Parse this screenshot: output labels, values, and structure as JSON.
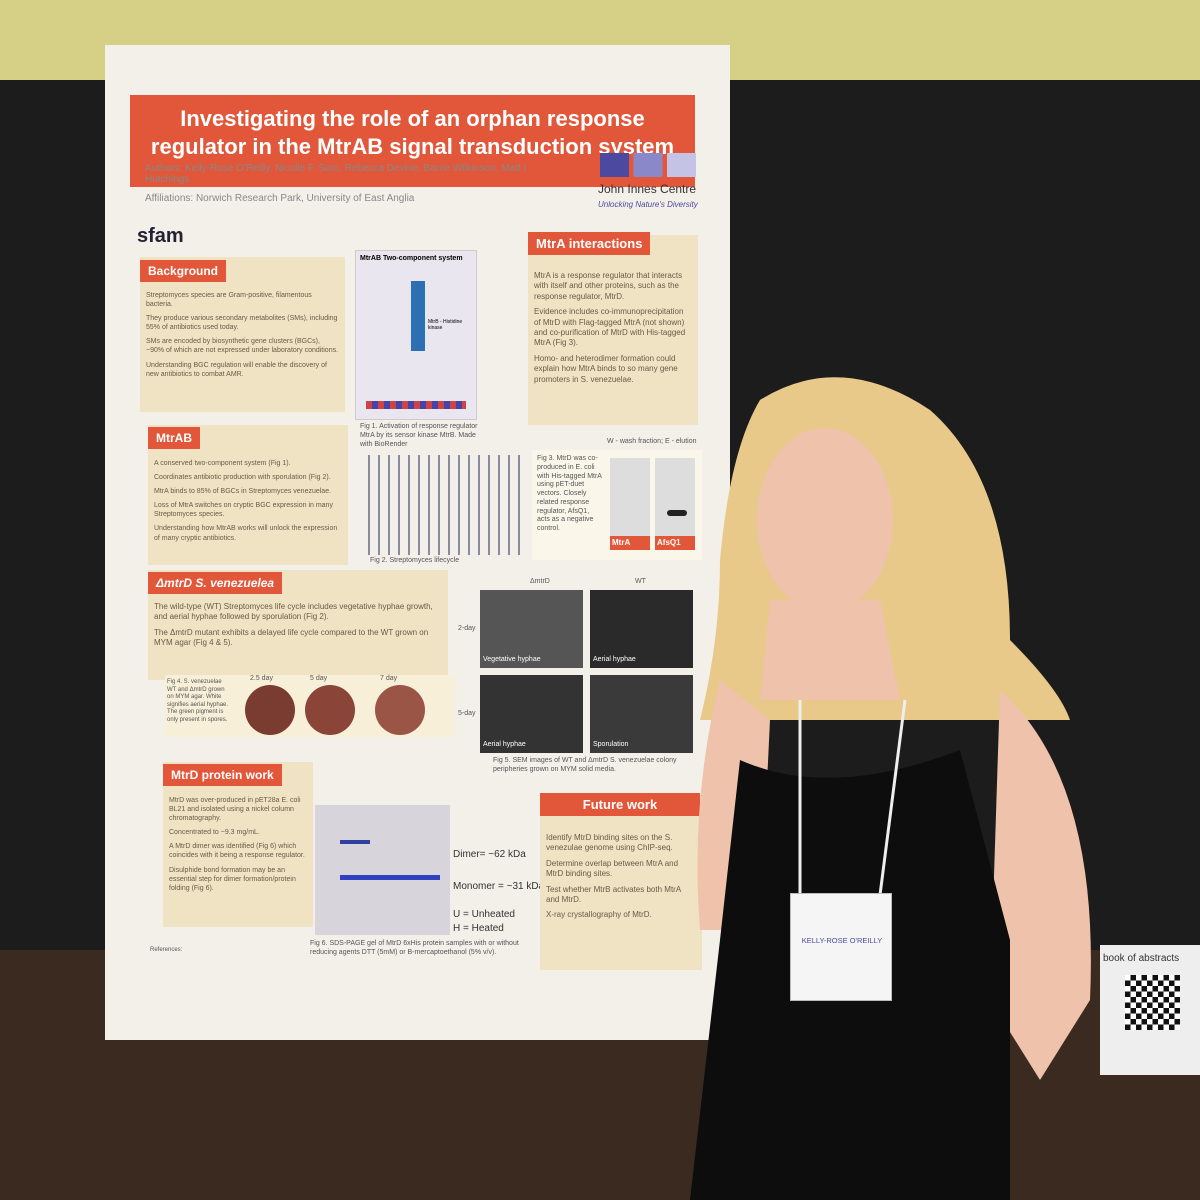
{
  "poster": {
    "title": "Investigating the role of an orphan response regulator in the MtrAB signal transduction system",
    "authors": "Authors: Kelly-Rose O'Reilly, Nicolle F. Som, Rebecca Devine, Barrie Wilkinson, Matt I Hutchings",
    "affiliations": "Affiliations: Norwich Research Park, University of East Anglia",
    "logo": "John Innes Centre",
    "tagline": "Unlocking Nature's Diversity",
    "sfam": "sfam",
    "background": {
      "heading": "Background",
      "items": [
        "Streptomyces species are Gram-positive, filamentous bacteria.",
        "They produce various secondary metabolites (SMs), including 55% of antibiotics used today.",
        "SMs are encoded by biosynthetic gene clusters (BGCs), ~90% of which are not expressed under laboratory conditions.",
        "Understanding BGC regulation will enable the discovery of new antibiotics to combat AMR."
      ]
    },
    "fig1": {
      "title": "MtrAB Two-component system",
      "label": "MtrB - Histidine kinase",
      "caption": "Fig 1. Activation of response regulator MtrA by its sensor kinase MtrB. Made with BioRender"
    },
    "mtra": {
      "heading": "MtrA interactions",
      "items": [
        "MtrA is a response regulator that interacts with itself and other proteins, such as the response regulator, MtrD.",
        "Evidence includes co-immunoprecipitation of MtrD with Flag-tagged MtrA (not shown) and co-purification of MtrD with His-tagged MtrA (Fig 3).",
        "Homo- and heterodimer formation could explain how MtrA binds to so many gene promoters in S. venezuelae."
      ]
    },
    "mtrab": {
      "heading": "MtrAB",
      "items": [
        "A conserved two-component system (Fig 1).",
        "Coordinates antibiotic production with sporulation (Fig 2).",
        "MtrA binds to 85% of BGCs in Streptomyces venezuelae.",
        "Loss of MtrA switches on cryptic BGC expression in many Streptomyces species.",
        "Understanding how MtrAB works will unlock the expression of many cryptic antibiotics."
      ]
    },
    "fig2": {
      "caption": "Fig 2. Streptomyces lifecycle"
    },
    "fig3": {
      "text": "Fig 3. MtrD was co-produced in E. coli with His-tagged MtrA using pET-duet vectors. Closely related response regulator, AfsQ1, acts as a negative control.",
      "header": "W - wash fraction; E - elution",
      "lanes": [
        "MtrA",
        "AfsQ1"
      ]
    },
    "mtrd": {
      "heading": "ΔmtrD S. venezuelea",
      "items": [
        "The wild-type (WT) Streptomyces life cycle includes vegetative hyphae growth, and aerial hyphae followed by sporulation (Fig 2).",
        "The ΔmtrD mutant exhibits a delayed life cycle compared to the WT grown on MYM agar (Fig 4 & 5)."
      ]
    },
    "fig4": {
      "text": "Fig 4. S. venezuelae WT and ΔmtrD grown on MYM agar. White signifies aerial hyphae. The green pigment is only present in spores.",
      "days": [
        "2.5 day",
        "5 day",
        "7 day"
      ]
    },
    "fig5": {
      "cols": [
        "ΔmtrD",
        "WT"
      ],
      "rows": [
        "2-day",
        "5-day"
      ],
      "panels": [
        "Vegetative hyphae",
        "Aerial hyphae",
        "Aerial hyphae",
        "Sporulation"
      ],
      "caption": "Fig 5. SEM images of WT and ΔmtrD S. venezuelae colony peripheries grown on MYM solid media."
    },
    "protein": {
      "heading": "MtrD protein work",
      "items": [
        "MtrD was over-produced in pET28a E. coli BL21 and isolated using a nickel column chromatography.",
        "Concentrated to ~9.3 mg/mL.",
        "A MtrD dimer was identified (Fig 6) which coincides with it being a response regulator.",
        "Disulphide bond formation may be an essential step for dimer formation/protein folding (Fig 6)."
      ]
    },
    "fig6": {
      "labels": [
        "Dimer= ~62 kDa",
        "Monomer = ~31 kDa",
        "U = Unheated",
        "H = Heated"
      ],
      "caption": "Fig 6. SDS-PAGE gel of MtrD 6xHis protein samples with or without reducing agents DTT (5mM) or B-mercaptoethanol (5% v/v)."
    },
    "future": {
      "heading": "Future work",
      "items": [
        "Identify MtrD binding sites on the S. venezulae genome using ChIP-seq.",
        "Determine overlap between MtrA and MtrD binding sites.",
        "Test whether MtrB activates both MtrA and MtrD.",
        "X-ray crystallography of MtrD."
      ]
    },
    "references": "References:"
  },
  "badge": {
    "name": "KELLY-ROSE O'REILLY"
  },
  "qr_note": "book of abstracts"
}
